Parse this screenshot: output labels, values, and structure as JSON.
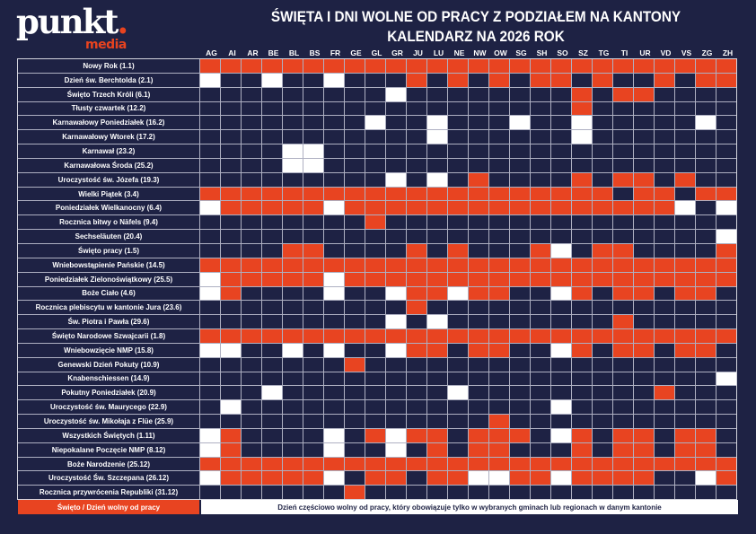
{
  "logo": {
    "word": "punkt",
    "dot": ".",
    "sub": "media"
  },
  "title": {
    "line1": "ŚWIĘTA I DNI WOLNE OD PRACY Z PODZIAŁEM NA KANTONY",
    "line2": "KALENDARZ NA 2026 ROK"
  },
  "colors": {
    "holiday": "#e84421",
    "not_free": "#1e2244",
    "partial": "#ffffff"
  },
  "cantons": [
    "AG",
    "AI",
    "AR",
    "BE",
    "BL",
    "BS",
    "FR",
    "GE",
    "GL",
    "GR",
    "JU",
    "LU",
    "NE",
    "NW",
    "OW",
    "SG",
    "SH",
    "SO",
    "SZ",
    "TG",
    "TI",
    "UR",
    "VD",
    "VS",
    "ZG",
    "ZH"
  ],
  "rows": [
    {
      "label": "Nowy Rok  (1.1)",
      "cells": "RRRRRRRRRRRRRRRRRRRRRRRRRR"
    },
    {
      "label": "Dzień św. Berchtolda (2.1)",
      "cells": "WNNWNNWNNNRNRNRNRRNRNNRNRR"
    },
    {
      "label": "Święto Trzech Króli (6.1)",
      "cells": "NNNNNNNNNWNNNNNNNNRNRRNNNN"
    },
    {
      "label": "Tłusty czwartek (12.2)",
      "cells": "NNNNNNNNNNNNNNNNNNRNNNNNNN"
    },
    {
      "label": "Karnawałowy Poniedziałek (16.2)",
      "cells": "NNNNNNNNWNNWNNNWNNWNNNNNWN"
    },
    {
      "label": "Karnawałowy Wtorek (17.2)",
      "cells": "NNNNNNNNNNNWNNNNNNWNNNNNNN"
    },
    {
      "label": "Karnawał (23.2)",
      "cells": "NNNNWWNNNNNNNNNNNNNNNNNNNN"
    },
    {
      "label": "Karnawałowa Środa (25.2)",
      "cells": "NNNNWWNNNNNNNNNNNNNNNNNNNN"
    },
    {
      "label": "Uroczystość św. Józefa (19.3)",
      "cells": "NNNNNNNNNWNWNRNNNNRNRRNRNN"
    },
    {
      "label": "Wielki Piątek (3.4)",
      "cells": "RRRRRRRRRRRRRRRRRRRRNRRNRR"
    },
    {
      "label": "Poniedziałek Wielkanocny (6.4)",
      "cells": "WRRRRRWRRRRRRRRRRRRRRRRWNW"
    },
    {
      "label": "Rocznica bitwy o Näfels (9.4)",
      "cells": "NNNNNNNNRNNNNNNNNNNNNNNNNN"
    },
    {
      "label": "Sechseläuten (20.4)",
      "cells": "NNNNNNNNNNNNNNNNNNNNNNNNNW"
    },
    {
      "label": "Święto pracy (1.5)",
      "cells": "NNNNRRNNNNRNRNNNRWNRRNNNNR"
    },
    {
      "label": "Wniebowstąpienie Pańskie (14.5)",
      "cells": "RRRRRRRRRRRRRRRRRRRRRRRRRR"
    },
    {
      "label": "Poniedziałek Zielonoświątkowy (25.5)",
      "cells": "WRRRRRWRRRRRRRRRRRRRRRRRRR"
    },
    {
      "label": "Boże Ciało (4.6)",
      "cells": "WRNNNNWNNWRRWRRNNWRNRRNRRN"
    },
    {
      "label": "Rocznica plebiscytu w kantonie Jura (23.6)",
      "cells": "NNNNNNNNNNRNNNNNNNNNNNNNNN"
    },
    {
      "label": "Św. Piotra i Pawła (29.6)",
      "cells": "NNNNNNNNNWNWNNNNNNNNRNNNNN"
    },
    {
      "label": "Święto Narodowe Szwajcarii (1.8)",
      "cells": "RRRRRRRRRRRRRRRRRRRRRRRRRR"
    },
    {
      "label": "Wniebowzięcie NMP (15.8)",
      "cells": "WWNNWNWNNWRRNRRNNWRNRRNRRN"
    },
    {
      "label": "Genewski Dzień Pokuty (10.9)",
      "cells": "NNNNNNNRNNNNNNNNNNNNNNNNNN"
    },
    {
      "label": "Knabenschiessen (14.9)",
      "cells": "NNNNNNNNNNNNNNNNNNNNNNNNNW"
    },
    {
      "label": "Pokutny Poniedziałek (20.9)",
      "cells": "NNNWNNNNNNNNWNNNNNNNNNRNNN"
    },
    {
      "label": "Uroczystość św. Maurycego (22.9)",
      "cells": "NWNNNNNNNNNNNNNNNWNNNNNNNN"
    },
    {
      "label": "Uroczystość św. Mikołaja z Flüe (25.9)",
      "cells": "NNNNNNNNNNNNNNRNNNNNNNNNNN"
    },
    {
      "label": "Wszystkich Świętych (1.11)",
      "cells": "WRNNNNWNRWRRNRRRNWRNRRNRRN"
    },
    {
      "label": "Niepokalane Poczęcie NMP (8.12)",
      "cells": "WRNNNNWNNWNRNRRNNNRNRRNRRN"
    },
    {
      "label": "Boże Narodzenie (25.12)",
      "cells": "RRRRRRRRRRRRRRRRRRRRRRRRRR"
    },
    {
      "label": "Uroczystość Św. Szczepana (26.12)",
      "cells": "WRRRRRWNRRNRRWWRRWRRRRNNWR"
    },
    {
      "label": "Rocznica przywrócenia Republiki (31.12)",
      "cells": "NNNNNNNRNNNNNNNNNNNNNNNNNN"
    }
  ],
  "legend": {
    "holiday": "Święto / Dzień wolny od pracy",
    "partial": "Dzień częściowo wolny od pracy, który obowiązuje tylko w wybranych gminach lub regionach w danym kantonie"
  }
}
